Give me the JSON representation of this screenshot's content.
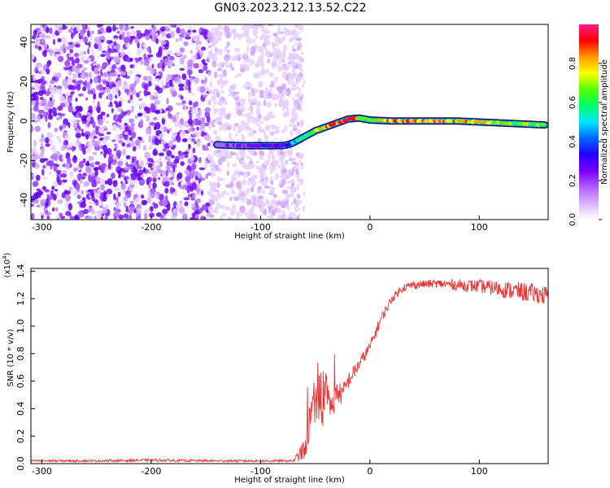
{
  "figure": {
    "title": "GN03.2023.212.13.52.C22"
  },
  "chart_data": [
    {
      "type": "heatmap",
      "xlabel": "Height of straight line (km)",
      "ylabel": "Frequency (Hz)",
      "xlim": [
        -310,
        163
      ],
      "ylim": [
        -50,
        49
      ],
      "xticks": [
        -300,
        -200,
        -100,
        0,
        100
      ],
      "yticks": [
        -40,
        -20,
        0,
        20,
        40
      ],
      "colorbar": {
        "label": "Normalized spectral amplitude",
        "range": [
          0,
          1
        ],
        "ticks": [
          "0.0",
          "0.2",
          "0.4",
          "0.6",
          "0.8"
        ],
        "colors": [
          "#ffffff",
          "#d9b3ff",
          "#b05cff",
          "#7a00ff",
          "#2200ff",
          "#0066ff",
          "#00e5ff",
          "#00ff66",
          "#55ff00",
          "#ffff00",
          "#ff9900",
          "#ff0000",
          "#ff1a8c"
        ]
      },
      "noise_region_x": [
        -310,
        -70
      ],
      "signal_ridge": {
        "x": [
          -140,
          -120,
          -100,
          -80,
          -75,
          -70,
          -60,
          -50,
          -40,
          -30,
          -20,
          -10,
          0,
          20,
          50,
          80,
          100,
          120,
          140,
          160
        ],
        "y": [
          -12,
          -12.5,
          -12.5,
          -12.5,
          -12,
          -11,
          -8,
          -5,
          -3,
          -1,
          1,
          1.5,
          0.5,
          0,
          0,
          0,
          -0.5,
          -1,
          -1.5,
          -2
        ],
        "amplitude": [
          0.2,
          0.25,
          0.3,
          0.35,
          0.4,
          0.5,
          0.65,
          0.75,
          0.85,
          0.95,
          1.0,
          0.85,
          0.7,
          0.9,
          0.95,
          0.9,
          0.85,
          0.8,
          0.75,
          0.7
        ]
      }
    },
    {
      "type": "line",
      "xlabel": "Height of straight line (km)",
      "ylabel": "SNR (10 * v/v)",
      "scale_note": "(x10",
      "scale_exp": "4",
      "scale_close": ")",
      "xlim": [
        -310,
        163
      ],
      "ylim": [
        0,
        1.42
      ],
      "xticks": [
        -300,
        -200,
        -100,
        0,
        100
      ],
      "yticks": [
        "0.0",
        "0.2",
        "0.4",
        "0.6",
        "0.8",
        "1.0",
        "1.2",
        "1.4"
      ],
      "color": "#ee3333",
      "series": [
        {
          "x": [
            -310,
            -250,
            -200,
            -150,
            -100,
            -70,
            -60,
            -55,
            -50,
            -45,
            -40,
            -35,
            -30,
            -25,
            -20,
            -10,
            0,
            10,
            20,
            30,
            40,
            60,
            80,
            100,
            120,
            140,
            163
          ],
          "y": [
            0.02,
            0.02,
            0.025,
            0.02,
            0.02,
            0.02,
            0.1,
            0.3,
            0.45,
            0.3,
            0.5,
            0.4,
            0.52,
            0.5,
            0.6,
            0.72,
            0.85,
            1.05,
            1.2,
            1.28,
            1.3,
            1.31,
            1.3,
            1.29,
            1.27,
            1.25,
            1.22
          ],
          "noise": [
            0.008,
            0.008,
            0.01,
            0.008,
            0.008,
            0.008,
            0.08,
            0.15,
            0.15,
            0.12,
            0.12,
            0.1,
            0.08,
            0.08,
            0.06,
            0.05,
            0.04,
            0.04,
            0.03,
            0.03,
            0.03,
            0.03,
            0.04,
            0.05,
            0.06,
            0.07,
            0.07
          ]
        }
      ]
    }
  ]
}
